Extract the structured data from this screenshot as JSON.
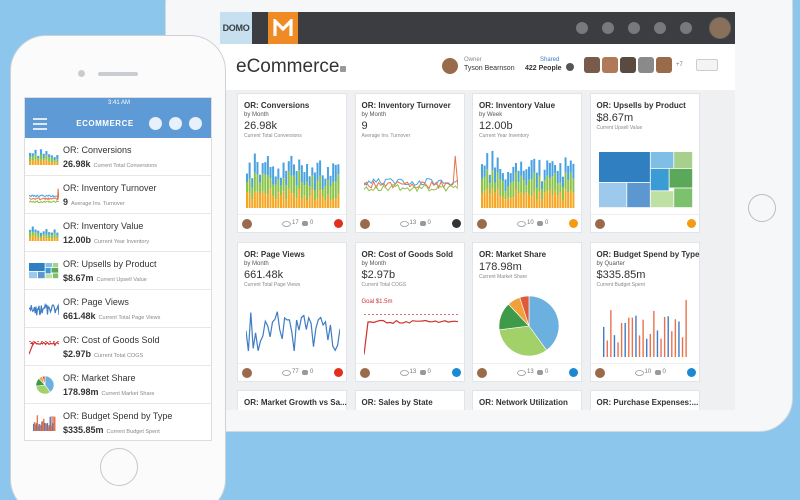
{
  "tablet": {
    "logo": "DOMO",
    "page_title": "eCommerce",
    "owner_label": "Owner",
    "owner": "Tyson Bearnson",
    "shared_label": "Shared",
    "shared": "422 People",
    "more": "+7",
    "cards": [
      {
        "title": "OR: Conversions",
        "period": "by Month",
        "value": "26.98k",
        "caption": "Current Total Conversions",
        "views": "17",
        "comments": "0"
      },
      {
        "title": "OR: Inventory Turnover",
        "period": "by Month",
        "value": "9",
        "caption": "Average Inv. Turnover",
        "views": "13",
        "comments": "0"
      },
      {
        "title": "OR: Inventory Value",
        "period": "by Week",
        "value": "12.00b",
        "caption": "Current Year Inventory",
        "views": "10",
        "comments": "0"
      },
      {
        "title": "OR: Upsells by Product",
        "value": "$8.67m",
        "caption": "Current Upsell Value"
      },
      {
        "title": "OR: Page Views",
        "period": "by Month",
        "value": "661.48k",
        "caption": "Current Total Page Views",
        "views": "77",
        "comments": "0"
      },
      {
        "title": "OR: Cost of Goods Sold",
        "period": "by Month",
        "value": "$2.97b",
        "caption": "Current Total COGS",
        "goal": "Goal $1.5m",
        "views": "13",
        "comments": "0"
      },
      {
        "title": "OR: Market Share",
        "value": "178.98m",
        "caption": "Current Market Share",
        "views": "13",
        "comments": "0"
      },
      {
        "title": "OR: Budget Spend by Type",
        "period": "by Quarter",
        "value": "$335.85m",
        "caption": "Current Budget Spent",
        "views": "10",
        "comments": "0"
      },
      {
        "title": "OR: Market Growth vs Sa..."
      },
      {
        "title": "OR: Sales by State"
      },
      {
        "title": "OR: Network Utilization"
      },
      {
        "title": "OR: Purchase Expenses:..."
      }
    ]
  },
  "phone": {
    "time": "3:41 AM",
    "title": "ECOMMERCE",
    "items": [
      {
        "title": "OR: Conversions",
        "value": "26.98k",
        "caption": "Current Total Conversions"
      },
      {
        "title": "OR: Inventory Turnover",
        "value": "9",
        "caption": "Average Inv. Turnover"
      },
      {
        "title": "OR: Inventory Value",
        "value": "12.00b",
        "caption": "Current Year Inventory"
      },
      {
        "title": "OR: Upsells by Product",
        "value": "$8.67m",
        "caption": "Current Upsell Value"
      },
      {
        "title": "OR: Page Views",
        "value": "661.48k",
        "caption": "Current Total Page Views"
      },
      {
        "title": "OR: Cost of Goods Sold",
        "value": "$2.97b",
        "caption": "Current Total COGS"
      },
      {
        "title": "OR: Market Share",
        "value": "178.98m",
        "caption": "Current Market Share"
      },
      {
        "title": "OR: Budget Spend by Type",
        "value": "$335.85m",
        "caption": "Current Budget Spent"
      }
    ]
  }
}
